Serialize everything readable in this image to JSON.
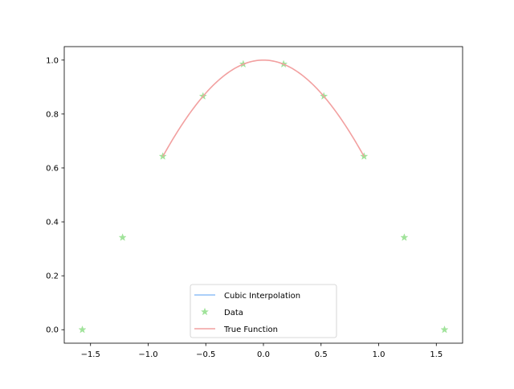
{
  "chart_data": {
    "type": "line",
    "title": "",
    "xlabel": "",
    "ylabel": "",
    "xlim": [
      -1.728,
      1.728
    ],
    "ylim": [
      -0.05,
      1.05
    ],
    "xticks": [
      -1.5,
      -1.0,
      -0.5,
      0.0,
      0.5,
      1.0,
      1.5
    ],
    "xtick_labels": [
      "−1.5",
      "−1.0",
      "−0.5",
      "0.0",
      "0.5",
      "1.0",
      "1.5"
    ],
    "yticks": [
      0.0,
      0.2,
      0.4,
      0.6,
      0.8,
      1.0
    ],
    "ytick_labels": [
      "0.0",
      "0.2",
      "0.4",
      "0.6",
      "0.8",
      "1.0"
    ],
    "grid": false,
    "legend_placement": "lower center",
    "series": [
      {
        "name": "Cubic Interpolation",
        "type": "line",
        "color": "#8fbff7",
        "x": [],
        "y": []
      },
      {
        "name": "Data",
        "type": "scatter",
        "marker": "star",
        "color": "#a0e39a",
        "x": [
          -1.571,
          -1.222,
          -0.873,
          -0.524,
          -0.175,
          0.175,
          0.524,
          0.873,
          1.222,
          1.571
        ],
        "y": [
          0.0,
          0.342,
          0.643,
          0.866,
          0.985,
          0.985,
          0.866,
          0.643,
          0.342,
          0.0
        ]
      },
      {
        "name": "True Function",
        "type": "line",
        "color": "#f2a0a0",
        "function": "cos(x)",
        "x_range": [
          -0.873,
          0.873
        ]
      }
    ]
  }
}
